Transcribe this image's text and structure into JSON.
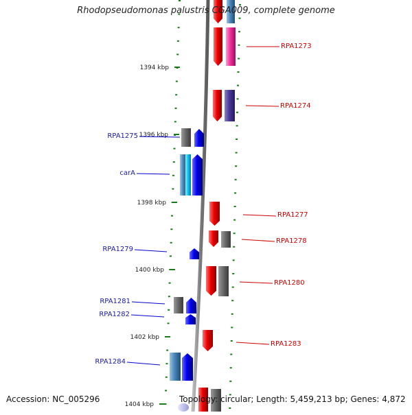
{
  "title": "Rhodopseudomonas palustris CGA009, complete genome",
  "footer": {
    "accession": "Accession: NC_005296",
    "summary": "Topology: circular; Length: 5,459,213 bp; Genes: 4,872"
  },
  "scale_labels": [
    "1394 kbp",
    "1396 kbp",
    "1398 kbp",
    "1400 kbp",
    "1402 kbp",
    "1404 kbp"
  ],
  "colors": {
    "forward_gene": "#0000ee",
    "reverse_gene": "#ee0000",
    "backbone": "#8a8a8a",
    "tick": "#1a7a1a",
    "forward_label": "#1a1aa0",
    "reverse_label": "#cc0000"
  },
  "forward_genes": [
    {
      "label": "RPA1275"
    },
    {
      "label": "carA"
    },
    {
      "label": "RPA1279"
    },
    {
      "label": "RPA1281"
    },
    {
      "label": "RPA1282"
    },
    {
      "label": "RPA1284"
    }
  ],
  "reverse_genes": [
    {
      "label": "RPA1273"
    },
    {
      "label": "RPA1274"
    },
    {
      "label": "RPA1277"
    },
    {
      "label": "RPA1278"
    },
    {
      "label": "RPA1280"
    },
    {
      "label": "RPA1283"
    }
  ]
}
